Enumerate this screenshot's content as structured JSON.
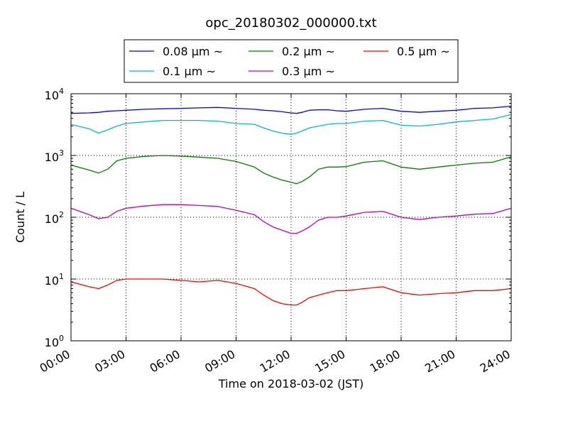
{
  "chart_data": {
    "type": "line",
    "title": "opc_20180302_000000.txt",
    "xlabel": "Time on 2018-03-02 (JST)",
    "ylabel": "Count / L",
    "yscale": "log",
    "xlim_hours": [
      0,
      24
    ],
    "ylim": [
      1,
      10000
    ],
    "grid": true,
    "legend": {
      "placement": "top-center",
      "columns": 3
    },
    "x_tick_labels": [
      "00:00",
      "03:00",
      "06:00",
      "09:00",
      "12:00",
      "15:00",
      "18:00",
      "21:00",
      "24:00"
    ],
    "y_tick_labels": [
      {
        "base": "10",
        "exp": "0"
      },
      {
        "base": "10",
        "exp": "1"
      },
      {
        "base": "10",
        "exp": "2"
      },
      {
        "base": "10",
        "exp": "3"
      },
      {
        "base": "10",
        "exp": "4"
      }
    ],
    "x": [
      0,
      1,
      1.5,
      2,
      2.5,
      3,
      4,
      5,
      6,
      7,
      8,
      9,
      10,
      10.5,
      11,
      11.5,
      12,
      12.3,
      12.6,
      13,
      13.5,
      14,
      14.5,
      15,
      16,
      17,
      18,
      19,
      20,
      21,
      22,
      23,
      24
    ],
    "series": [
      {
        "name": "0.08 μm ~",
        "color": "#0000ff",
        "values": [
          4800,
          4900,
          5000,
          5200,
          5300,
          5400,
          5600,
          5700,
          5800,
          5900,
          6000,
          5800,
          5600,
          5400,
          5300,
          5100,
          4900,
          4800,
          5000,
          5400,
          5500,
          5500,
          5300,
          5200,
          5600,
          5800,
          5200,
          5000,
          5200,
          5400,
          5800,
          5900,
          6300
        ]
      },
      {
        "name": "0.1 μm ~",
        "color": "#00bfbf",
        "values": [
          3200,
          2700,
          2300,
          2600,
          3000,
          3300,
          3500,
          3700,
          3700,
          3700,
          3600,
          3300,
          3200,
          2800,
          2500,
          2300,
          2200,
          2300,
          2500,
          2800,
          3000,
          3200,
          3300,
          3300,
          3600,
          3700,
          3100,
          3000,
          3200,
          3500,
          3700,
          3900,
          4600
        ]
      },
      {
        "name": "0.2 μm ~",
        "color": "#008000",
        "values": [
          700,
          580,
          520,
          600,
          820,
          900,
          970,
          1000,
          980,
          940,
          900,
          800,
          650,
          520,
          450,
          400,
          370,
          350,
          380,
          450,
          600,
          650,
          650,
          660,
          780,
          820,
          650,
          600,
          650,
          700,
          750,
          780,
          950
        ]
      },
      {
        "name": "0.3 μm ~",
        "color": "#bf00bf",
        "values": [
          140,
          110,
          95,
          100,
          125,
          140,
          152,
          160,
          160,
          155,
          150,
          130,
          110,
          85,
          70,
          62,
          55,
          55,
          60,
          70,
          90,
          100,
          100,
          105,
          120,
          125,
          100,
          92,
          100,
          105,
          112,
          115,
          140
        ]
      },
      {
        "name": "0.5 μm ~",
        "color": "#ff0000",
        "values": [
          9,
          7.5,
          7,
          8,
          9.5,
          10,
          10,
          10,
          9.5,
          9,
          9.5,
          8.5,
          7,
          5.5,
          4.5,
          4,
          3.8,
          3.8,
          4.2,
          5,
          5.5,
          6,
          6.5,
          6.5,
          7,
          7.5,
          6,
          5.5,
          5.8,
          6,
          6.5,
          6.5,
          7
        ]
      }
    ]
  }
}
